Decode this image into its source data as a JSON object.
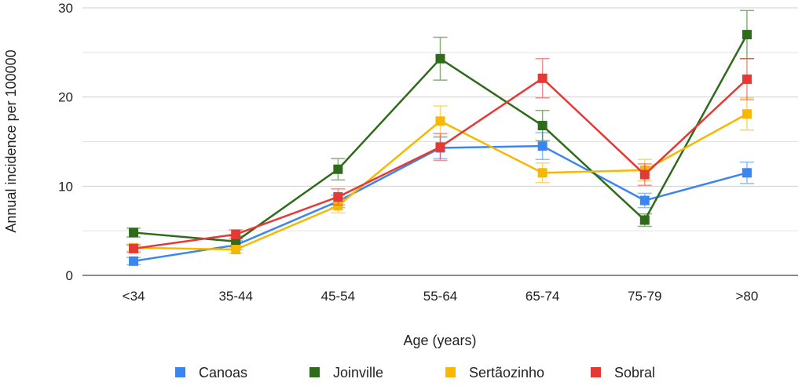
{
  "chart_data": {
    "type": "line",
    "title": "",
    "xlabel": "Age (years)",
    "ylabel": "Annual incidence per 100000",
    "ylim": [
      0,
      30
    ],
    "yticks": [
      0,
      10,
      20,
      30
    ],
    "grid": true,
    "legend_position": "bottom",
    "categories": [
      "<34",
      "35-44",
      "45-54",
      "55-64",
      "65-74",
      "75-79",
      ">80"
    ],
    "series": [
      {
        "name": "Canoas",
        "color": "#3a86f0",
        "values": [
          1.6,
          3.4,
          8.3,
          14.3,
          14.5,
          8.4,
          11.5
        ],
        "error": [
          0.4,
          0.5,
          0.7,
          1.2,
          1.5,
          0.8,
          1.2
        ]
      },
      {
        "name": "Joinville",
        "color": "#2e6b1a",
        "values": [
          4.8,
          3.8,
          11.9,
          24.3,
          16.8,
          6.2,
          27.0
        ],
        "error": [
          0.5,
          0.6,
          1.2,
          2.4,
          1.7,
          0.7,
          2.7
        ]
      },
      {
        "name": "Sertãozinho",
        "color": "#f6b800",
        "values": [
          3.1,
          2.9,
          7.8,
          17.3,
          11.5,
          11.8,
          18.1
        ],
        "error": [
          0.4,
          0.4,
          0.8,
          1.7,
          1.1,
          1.2,
          1.8
        ]
      },
      {
        "name": "Sobral",
        "color": "#e53935",
        "values": [
          3.0,
          4.6,
          8.8,
          14.4,
          22.1,
          11.3,
          22.0
        ],
        "error": [
          0.4,
          0.5,
          0.9,
          1.5,
          2.2,
          1.2,
          2.3
        ]
      }
    ]
  }
}
